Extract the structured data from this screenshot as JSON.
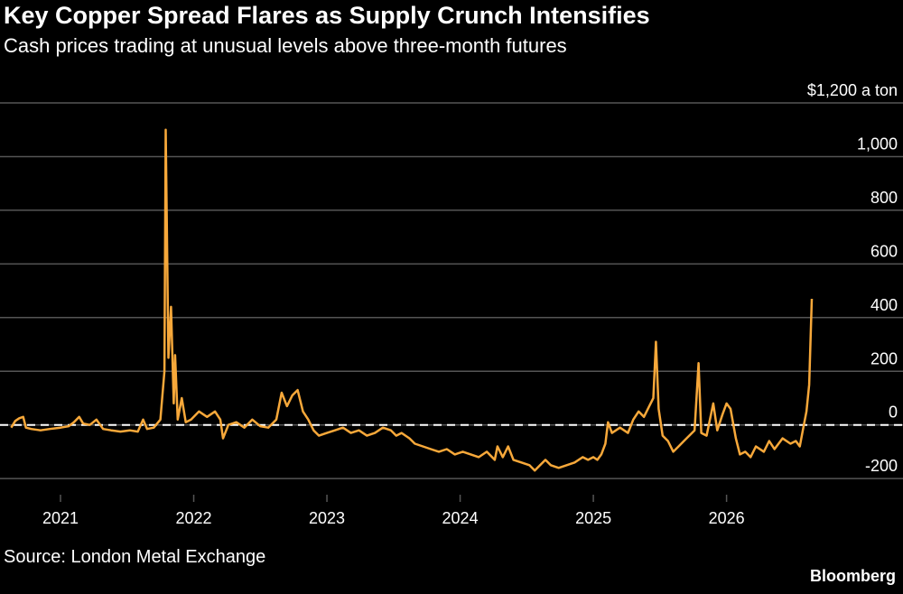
{
  "title": "Key Copper Spread Flares as Supply Crunch Intensifies",
  "subtitle": "Cash prices trading at unusual levels above three-month futures",
  "source": "Source: London Metal Exchange",
  "brand": "Bloomberg",
  "colors": {
    "background": "#000000",
    "line": "#f7a83a",
    "grid": "#555555",
    "zero_line": "#ffffff"
  },
  "chart_data": {
    "type": "line",
    "unit_label": "$1,200 a ton",
    "ylim": [
      -260,
      1200
    ],
    "xlim": [
      2020.6,
      2026.85
    ],
    "y_ticks": [
      {
        "value": 1200,
        "label": ""
      },
      {
        "value": 1000,
        "label": "1,000"
      },
      {
        "value": 800,
        "label": "800"
      },
      {
        "value": 600,
        "label": "600"
      },
      {
        "value": 400,
        "label": "400"
      },
      {
        "value": 200,
        "label": "200"
      },
      {
        "value": 0,
        "label": "0"
      },
      {
        "value": -200,
        "label": "-200"
      }
    ],
    "x_ticks": [
      {
        "value": 2021,
        "label": "2021"
      },
      {
        "value": 2022,
        "label": "2022"
      },
      {
        "value": 2023,
        "label": "2023"
      },
      {
        "value": 2024,
        "label": "2024"
      },
      {
        "value": 2025,
        "label": "2025"
      },
      {
        "value": 2026,
        "label": "2026"
      }
    ],
    "reference_line": {
      "value": 0,
      "style": "dashed"
    },
    "grid": true,
    "series": [
      {
        "values": [
          [
            2020.63,
            -10
          ],
          [
            2020.66,
            15
          ],
          [
            2020.69,
            25
          ],
          [
            2020.72,
            30
          ],
          [
            2020.74,
            -10
          ],
          [
            2020.78,
            -15
          ],
          [
            2020.85,
            -20
          ],
          [
            2020.92,
            -15
          ],
          [
            2021.0,
            -10
          ],
          [
            2021.06,
            -5
          ],
          [
            2021.1,
            10
          ],
          [
            2021.14,
            30
          ],
          [
            2021.17,
            5
          ],
          [
            2021.22,
            0
          ],
          [
            2021.27,
            20
          ],
          [
            2021.32,
            -15
          ],
          [
            2021.38,
            -20
          ],
          [
            2021.45,
            -25
          ],
          [
            2021.52,
            -20
          ],
          [
            2021.58,
            -25
          ],
          [
            2021.62,
            20
          ],
          [
            2021.65,
            -15
          ],
          [
            2021.7,
            -10
          ],
          [
            2021.75,
            20
          ],
          [
            2021.78,
            200
          ],
          [
            2021.79,
            1100
          ],
          [
            2021.81,
            250
          ],
          [
            2021.83,
            440
          ],
          [
            2021.85,
            80
          ],
          [
            2021.86,
            260
          ],
          [
            2021.88,
            20
          ],
          [
            2021.91,
            100
          ],
          [
            2021.94,
            10
          ],
          [
            2021.98,
            20
          ],
          [
            2022.04,
            50
          ],
          [
            2022.1,
            30
          ],
          [
            2022.16,
            50
          ],
          [
            2022.2,
            20
          ],
          [
            2022.22,
            -50
          ],
          [
            2022.26,
            0
          ],
          [
            2022.32,
            10
          ],
          [
            2022.38,
            -10
          ],
          [
            2022.44,
            20
          ],
          [
            2022.5,
            -5
          ],
          [
            2022.56,
            -10
          ],
          [
            2022.62,
            20
          ],
          [
            2022.66,
            120
          ],
          [
            2022.7,
            70
          ],
          [
            2022.74,
            110
          ],
          [
            2022.78,
            130
          ],
          [
            2022.82,
            50
          ],
          [
            2022.86,
            20
          ],
          [
            2022.9,
            -20
          ],
          [
            2022.94,
            -40
          ],
          [
            2023.0,
            -30
          ],
          [
            2023.06,
            -20
          ],
          [
            2023.12,
            -10
          ],
          [
            2023.18,
            -30
          ],
          [
            2023.24,
            -20
          ],
          [
            2023.3,
            -40
          ],
          [
            2023.36,
            -30
          ],
          [
            2023.42,
            -10
          ],
          [
            2023.48,
            -20
          ],
          [
            2023.52,
            -40
          ],
          [
            2023.56,
            -30
          ],
          [
            2023.62,
            -50
          ],
          [
            2023.66,
            -70
          ],
          [
            2023.72,
            -80
          ],
          [
            2023.78,
            -90
          ],
          [
            2023.84,
            -100
          ],
          [
            2023.9,
            -90
          ],
          [
            2023.96,
            -110
          ],
          [
            2024.02,
            -100
          ],
          [
            2024.08,
            -110
          ],
          [
            2024.14,
            -120
          ],
          [
            2024.2,
            -100
          ],
          [
            2024.26,
            -130
          ],
          [
            2024.28,
            -80
          ],
          [
            2024.32,
            -120
          ],
          [
            2024.36,
            -80
          ],
          [
            2024.4,
            -130
          ],
          [
            2024.46,
            -140
          ],
          [
            2024.52,
            -150
          ],
          [
            2024.56,
            -170
          ],
          [
            2024.6,
            -150
          ],
          [
            2024.64,
            -130
          ],
          [
            2024.68,
            -150
          ],
          [
            2024.74,
            -160
          ],
          [
            2024.8,
            -150
          ],
          [
            2024.86,
            -140
          ],
          [
            2024.92,
            -120
          ],
          [
            2024.96,
            -130
          ],
          [
            2025.0,
            -120
          ],
          [
            2025.03,
            -130
          ],
          [
            2025.06,
            -110
          ],
          [
            2025.09,
            -70
          ],
          [
            2025.11,
            10
          ],
          [
            2025.14,
            -30
          ],
          [
            2025.2,
            -10
          ],
          [
            2025.26,
            -30
          ],
          [
            2025.3,
            20
          ],
          [
            2025.34,
            50
          ],
          [
            2025.38,
            30
          ],
          [
            2025.42,
            70
          ],
          [
            2025.45,
            100
          ],
          [
            2025.47,
            310
          ],
          [
            2025.49,
            60
          ],
          [
            2025.52,
            -40
          ],
          [
            2025.56,
            -60
          ],
          [
            2025.6,
            -100
          ],
          [
            2025.64,
            -80
          ],
          [
            2025.68,
            -60
          ],
          [
            2025.72,
            -40
          ],
          [
            2025.76,
            -20
          ],
          [
            2025.79,
            230
          ],
          [
            2025.81,
            -30
          ],
          [
            2025.85,
            -40
          ],
          [
            2025.9,
            80
          ],
          [
            2025.93,
            -20
          ],
          [
            2025.97,
            40
          ],
          [
            2026.0,
            80
          ],
          [
            2026.03,
            60
          ],
          [
            2026.07,
            -50
          ],
          [
            2026.1,
            -110
          ],
          [
            2026.14,
            -100
          ],
          [
            2026.18,
            -120
          ],
          [
            2026.22,
            -80
          ],
          [
            2026.28,
            -100
          ],
          [
            2026.32,
            -60
          ],
          [
            2026.36,
            -90
          ],
          [
            2026.42,
            -50
          ],
          [
            2026.48,
            -70
          ],
          [
            2026.52,
            -60
          ],
          [
            2026.55,
            -80
          ],
          [
            2026.58,
            0
          ],
          [
            2026.6,
            50
          ],
          [
            2026.62,
            150
          ],
          [
            2026.64,
            470
          ]
        ]
      }
    ]
  }
}
